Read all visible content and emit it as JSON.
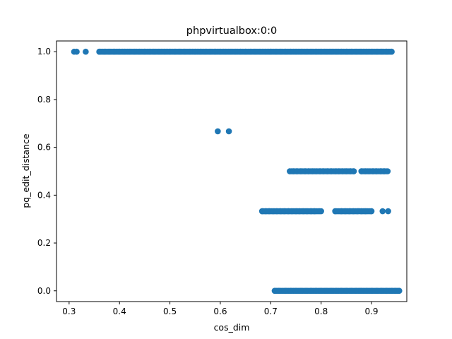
{
  "chart_data": {
    "type": "scatter",
    "title": "phpvirtualbox:0:0",
    "xlabel": "cos_dim",
    "ylabel": "pq_edit_distance",
    "xlim": [
      0.275,
      0.97
    ],
    "ylim": [
      -0.045,
      1.045
    ],
    "xticks": [
      0.3,
      0.4,
      0.5,
      0.6,
      0.7,
      0.8,
      0.9
    ],
    "xtick_labels": [
      "0.3",
      "0.4",
      "0.5",
      "0.6",
      "0.7",
      "0.8",
      "0.9"
    ],
    "yticks": [
      0.0,
      0.2,
      0.4,
      0.6,
      0.8,
      1.0
    ],
    "ytick_labels": [
      "0.0",
      "0.2",
      "0.4",
      "0.6",
      "0.8",
      "1.0"
    ],
    "grid": false,
    "marker_color": "#1f77b4",
    "series": [
      {
        "points": [
          [
            0.31,
            1.0
          ],
          [
            0.315,
            1.0
          ],
          [
            0.333,
            1.0
          ],
          [
            0.36,
            1.0
          ],
          [
            0.37,
            1.0
          ],
          [
            0.38,
            1.0
          ],
          [
            0.39,
            1.0
          ],
          [
            0.4,
            1.0
          ],
          [
            0.41,
            1.0
          ],
          [
            0.42,
            1.0
          ],
          [
            0.43,
            1.0
          ],
          [
            0.44,
            1.0
          ],
          [
            0.45,
            1.0
          ],
          [
            0.46,
            1.0
          ],
          [
            0.47,
            1.0
          ],
          [
            0.48,
            1.0
          ],
          [
            0.49,
            1.0
          ],
          [
            0.5,
            1.0
          ],
          [
            0.51,
            1.0
          ],
          [
            0.52,
            1.0
          ],
          [
            0.53,
            1.0
          ],
          [
            0.54,
            1.0
          ],
          [
            0.55,
            1.0
          ],
          [
            0.56,
            1.0
          ],
          [
            0.57,
            1.0
          ],
          [
            0.58,
            1.0
          ],
          [
            0.59,
            1.0
          ],
          [
            0.6,
            1.0
          ],
          [
            0.61,
            1.0
          ],
          [
            0.62,
            1.0
          ],
          [
            0.63,
            1.0
          ],
          [
            0.64,
            1.0
          ],
          [
            0.65,
            1.0
          ],
          [
            0.66,
            1.0
          ],
          [
            0.67,
            1.0
          ],
          [
            0.68,
            1.0
          ],
          [
            0.69,
            1.0
          ],
          [
            0.7,
            1.0
          ],
          [
            0.71,
            1.0
          ],
          [
            0.72,
            1.0
          ],
          [
            0.73,
            1.0
          ],
          [
            0.74,
            1.0
          ],
          [
            0.75,
            1.0
          ],
          [
            0.76,
            1.0
          ],
          [
            0.77,
            1.0
          ],
          [
            0.78,
            1.0
          ],
          [
            0.79,
            1.0
          ],
          [
            0.8,
            1.0
          ],
          [
            0.81,
            1.0
          ],
          [
            0.82,
            1.0
          ],
          [
            0.83,
            1.0
          ],
          [
            0.84,
            1.0
          ],
          [
            0.85,
            1.0
          ],
          [
            0.86,
            1.0
          ],
          [
            0.87,
            1.0
          ],
          [
            0.88,
            1.0
          ],
          [
            0.89,
            1.0
          ],
          [
            0.9,
            1.0
          ],
          [
            0.91,
            1.0
          ],
          [
            0.92,
            1.0
          ],
          [
            0.93,
            1.0
          ],
          [
            0.94,
            1.0
          ],
          [
            0.595,
            0.667
          ],
          [
            0.617,
            0.667
          ],
          [
            0.738,
            0.5
          ],
          [
            0.745,
            0.5
          ],
          [
            0.752,
            0.5
          ],
          [
            0.76,
            0.5
          ],
          [
            0.768,
            0.5
          ],
          [
            0.775,
            0.5
          ],
          [
            0.783,
            0.5
          ],
          [
            0.79,
            0.5
          ],
          [
            0.798,
            0.5
          ],
          [
            0.805,
            0.5
          ],
          [
            0.812,
            0.5
          ],
          [
            0.82,
            0.5
          ],
          [
            0.828,
            0.5
          ],
          [
            0.835,
            0.5
          ],
          [
            0.843,
            0.5
          ],
          [
            0.85,
            0.5
          ],
          [
            0.858,
            0.5
          ],
          [
            0.865,
            0.5
          ],
          [
            0.88,
            0.5
          ],
          [
            0.888,
            0.5
          ],
          [
            0.895,
            0.5
          ],
          [
            0.903,
            0.5
          ],
          [
            0.91,
            0.5
          ],
          [
            0.918,
            0.5
          ],
          [
            0.925,
            0.5
          ],
          [
            0.932,
            0.5
          ],
          [
            0.683,
            0.333
          ],
          [
            0.69,
            0.333
          ],
          [
            0.697,
            0.333
          ],
          [
            0.705,
            0.333
          ],
          [
            0.712,
            0.333
          ],
          [
            0.72,
            0.333
          ],
          [
            0.727,
            0.333
          ],
          [
            0.735,
            0.333
          ],
          [
            0.742,
            0.333
          ],
          [
            0.75,
            0.333
          ],
          [
            0.757,
            0.333
          ],
          [
            0.765,
            0.333
          ],
          [
            0.772,
            0.333
          ],
          [
            0.78,
            0.333
          ],
          [
            0.787,
            0.333
          ],
          [
            0.8,
            0.333
          ],
          [
            0.828,
            0.333
          ],
          [
            0.84,
            0.333
          ],
          [
            0.848,
            0.333
          ],
          [
            0.856,
            0.333
          ],
          [
            0.864,
            0.333
          ],
          [
            0.872,
            0.333
          ],
          [
            0.88,
            0.333
          ],
          [
            0.888,
            0.333
          ],
          [
            0.9,
            0.333
          ],
          [
            0.922,
            0.333
          ],
          [
            0.933,
            0.333
          ],
          [
            0.708,
            0.0
          ],
          [
            0.716,
            0.0
          ],
          [
            0.73,
            0.0
          ],
          [
            0.74,
            0.0
          ],
          [
            0.75,
            0.0
          ],
          [
            0.76,
            0.0
          ],
          [
            0.77,
            0.0
          ],
          [
            0.78,
            0.0
          ],
          [
            0.79,
            0.0
          ],
          [
            0.8,
            0.0
          ],
          [
            0.81,
            0.0
          ],
          [
            0.82,
            0.0
          ],
          [
            0.83,
            0.0
          ],
          [
            0.84,
            0.0
          ],
          [
            0.85,
            0.0
          ],
          [
            0.86,
            0.0
          ],
          [
            0.87,
            0.0
          ],
          [
            0.88,
            0.0
          ],
          [
            0.89,
            0.0
          ],
          [
            0.9,
            0.0
          ],
          [
            0.91,
            0.0
          ],
          [
            0.92,
            0.0
          ],
          [
            0.93,
            0.0
          ],
          [
            0.94,
            0.0
          ],
          [
            0.948,
            0.0
          ],
          [
            0.955,
            0.0
          ]
        ],
        "dense_bands": [
          {
            "y": 1.0,
            "x_from": 0.36,
            "x_to": 0.94
          },
          {
            "y": 0.5,
            "x_from": 0.738,
            "x_to": 0.865
          },
          {
            "y": 0.5,
            "x_from": 0.88,
            "x_to": 0.932
          },
          {
            "y": 0.333,
            "x_from": 0.683,
            "x_to": 0.8
          },
          {
            "y": 0.333,
            "x_from": 0.828,
            "x_to": 0.9
          },
          {
            "y": 0.0,
            "x_from": 0.708,
            "x_to": 0.955
          }
        ]
      }
    ]
  }
}
